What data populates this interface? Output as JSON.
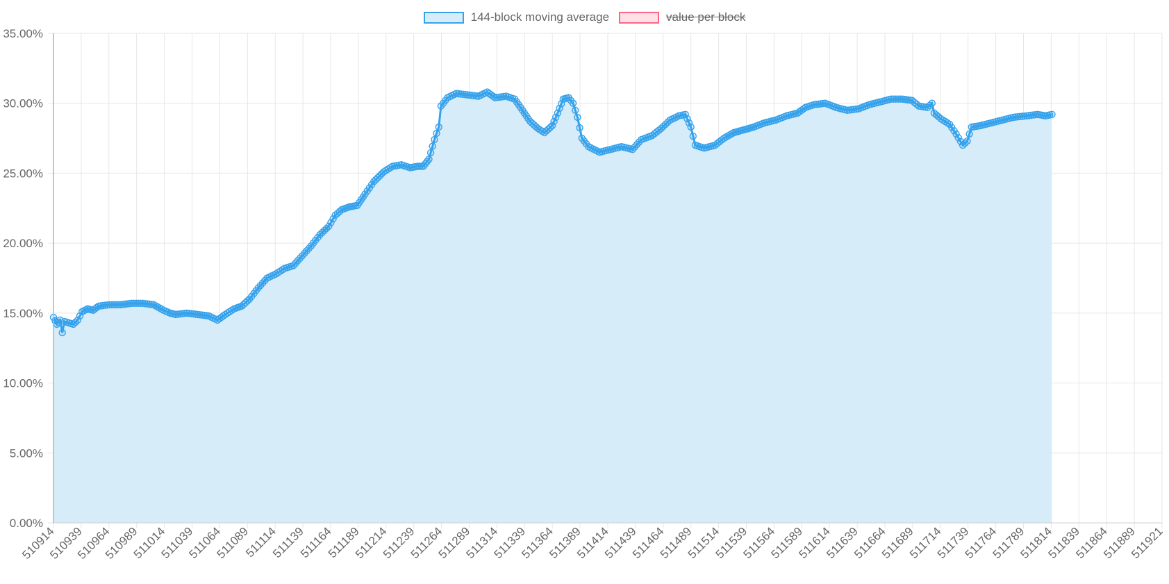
{
  "chart_data": {
    "type": "line",
    "title": "",
    "xlabel": "",
    "ylabel": "",
    "ylim": [
      0,
      35
    ],
    "xlim": [
      510914,
      511921
    ],
    "y_ticks": [
      0,
      5,
      10,
      15,
      20,
      25,
      30,
      35
    ],
    "y_tick_labels": [
      "0.00%",
      "5.00%",
      "10.00%",
      "15.00%",
      "20.00%",
      "25.00%",
      "30.00%",
      "35.00%"
    ],
    "x_tick_labels": [
      "510914",
      "510939",
      "510964",
      "510989",
      "511014",
      "511039",
      "511064",
      "511089",
      "511114",
      "511139",
      "511164",
      "511189",
      "511214",
      "511239",
      "511264",
      "511289",
      "511314",
      "511339",
      "511364",
      "511389",
      "511414",
      "511439",
      "511464",
      "511489",
      "511514",
      "511539",
      "511564",
      "511589",
      "511614",
      "511639",
      "511664",
      "511689",
      "511714",
      "511739",
      "511764",
      "511789",
      "511814",
      "511839",
      "511864",
      "511889",
      "511921"
    ],
    "grid": true,
    "legend_position": "top-center",
    "legend": [
      {
        "name": "144-block moving average",
        "hidden": false,
        "fill": "#d7ecf9",
        "border": "#36a2eb"
      },
      {
        "name": "value per block",
        "hidden": true,
        "fill": "#ffe0e6",
        "border": "#ff6384"
      }
    ],
    "series": [
      {
        "name": "144-block moving average",
        "color": "#36a2eb",
        "fill": "#d7ecf9",
        "points": [
          [
            510914,
            14.7
          ],
          [
            510917,
            14.2
          ],
          [
            510920,
            14.5
          ],
          [
            510922,
            13.6
          ],
          [
            510924,
            14.4
          ],
          [
            510928,
            14.3
          ],
          [
            510932,
            14.2
          ],
          [
            510936,
            14.5
          ],
          [
            510940,
            15.1
          ],
          [
            510945,
            15.3
          ],
          [
            510950,
            15.2
          ],
          [
            510955,
            15.5
          ],
          [
            510965,
            15.6
          ],
          [
            510975,
            15.6
          ],
          [
            510985,
            15.7
          ],
          [
            510995,
            15.7
          ],
          [
            511005,
            15.6
          ],
          [
            511014,
            15.2
          ],
          [
            511020,
            15.0
          ],
          [
            511025,
            14.9
          ],
          [
            511035,
            15.0
          ],
          [
            511045,
            14.9
          ],
          [
            511055,
            14.8
          ],
          [
            511063,
            14.5
          ],
          [
            511070,
            14.9
          ],
          [
            511078,
            15.3
          ],
          [
            511085,
            15.5
          ],
          [
            511092,
            16.0
          ],
          [
            511100,
            16.8
          ],
          [
            511108,
            17.5
          ],
          [
            511116,
            17.8
          ],
          [
            511124,
            18.2
          ],
          [
            511132,
            18.4
          ],
          [
            511140,
            19.1
          ],
          [
            511148,
            19.8
          ],
          [
            511156,
            20.6
          ],
          [
            511164,
            21.2
          ],
          [
            511170,
            22.0
          ],
          [
            511176,
            22.4
          ],
          [
            511183,
            22.6
          ],
          [
            511190,
            22.7
          ],
          [
            511197,
            23.5
          ],
          [
            511205,
            24.4
          ],
          [
            511214,
            25.1
          ],
          [
            511222,
            25.5
          ],
          [
            511230,
            25.6
          ],
          [
            511238,
            25.4
          ],
          [
            511245,
            25.5
          ],
          [
            511250,
            25.5
          ],
          [
            511255,
            26.0
          ],
          [
            511260,
            27.4
          ],
          [
            511264,
            28.3
          ],
          [
            511266,
            29.8
          ],
          [
            511272,
            30.4
          ],
          [
            511280,
            30.7
          ],
          [
            511290,
            30.6
          ],
          [
            511300,
            30.5
          ],
          [
            511308,
            30.8
          ],
          [
            511315,
            30.4
          ],
          [
            511325,
            30.5
          ],
          [
            511333,
            30.3
          ],
          [
            511340,
            29.5
          ],
          [
            511347,
            28.7
          ],
          [
            511354,
            28.2
          ],
          [
            511360,
            27.9
          ],
          [
            511367,
            28.4
          ],
          [
            511372,
            29.3
          ],
          [
            511377,
            30.3
          ],
          [
            511382,
            30.4
          ],
          [
            511386,
            30.0
          ],
          [
            511390,
            29.0
          ],
          [
            511394,
            27.5
          ],
          [
            511400,
            26.9
          ],
          [
            511410,
            26.5
          ],
          [
            511420,
            26.7
          ],
          [
            511430,
            26.9
          ],
          [
            511440,
            26.7
          ],
          [
            511448,
            27.4
          ],
          [
            511458,
            27.7
          ],
          [
            511466,
            28.2
          ],
          [
            511474,
            28.8
          ],
          [
            511482,
            29.1
          ],
          [
            511488,
            29.2
          ],
          [
            511493,
            28.3
          ],
          [
            511497,
            27.0
          ],
          [
            511505,
            26.8
          ],
          [
            511515,
            27.0
          ],
          [
            511523,
            27.5
          ],
          [
            511532,
            27.9
          ],
          [
            511541,
            28.1
          ],
          [
            511550,
            28.3
          ],
          [
            511560,
            28.6
          ],
          [
            511570,
            28.8
          ],
          [
            511580,
            29.1
          ],
          [
            511590,
            29.3
          ],
          [
            511597,
            29.7
          ],
          [
            511605,
            29.9
          ],
          [
            511615,
            30.0
          ],
          [
            511625,
            29.7
          ],
          [
            511635,
            29.5
          ],
          [
            511645,
            29.6
          ],
          [
            511655,
            29.9
          ],
          [
            511665,
            30.1
          ],
          [
            511675,
            30.3
          ],
          [
            511685,
            30.3
          ],
          [
            511694,
            30.2
          ],
          [
            511700,
            29.8
          ],
          [
            511708,
            29.7
          ],
          [
            511712,
            30.0
          ],
          [
            511714,
            29.3
          ],
          [
            511720,
            28.9
          ],
          [
            511728,
            28.5
          ],
          [
            511734,
            27.8
          ],
          [
            511740,
            27.0
          ],
          [
            511744,
            27.3
          ],
          [
            511748,
            28.3
          ],
          [
            511756,
            28.4
          ],
          [
            511766,
            28.6
          ],
          [
            511776,
            28.8
          ],
          [
            511786,
            29.0
          ],
          [
            511798,
            29.1
          ],
          [
            511808,
            29.2
          ],
          [
            511815,
            29.1
          ],
          [
            511821,
            29.2
          ]
        ]
      },
      {
        "name": "value per block",
        "color": "#ff6384",
        "fill": "#ffe0e6",
        "points": []
      }
    ]
  }
}
